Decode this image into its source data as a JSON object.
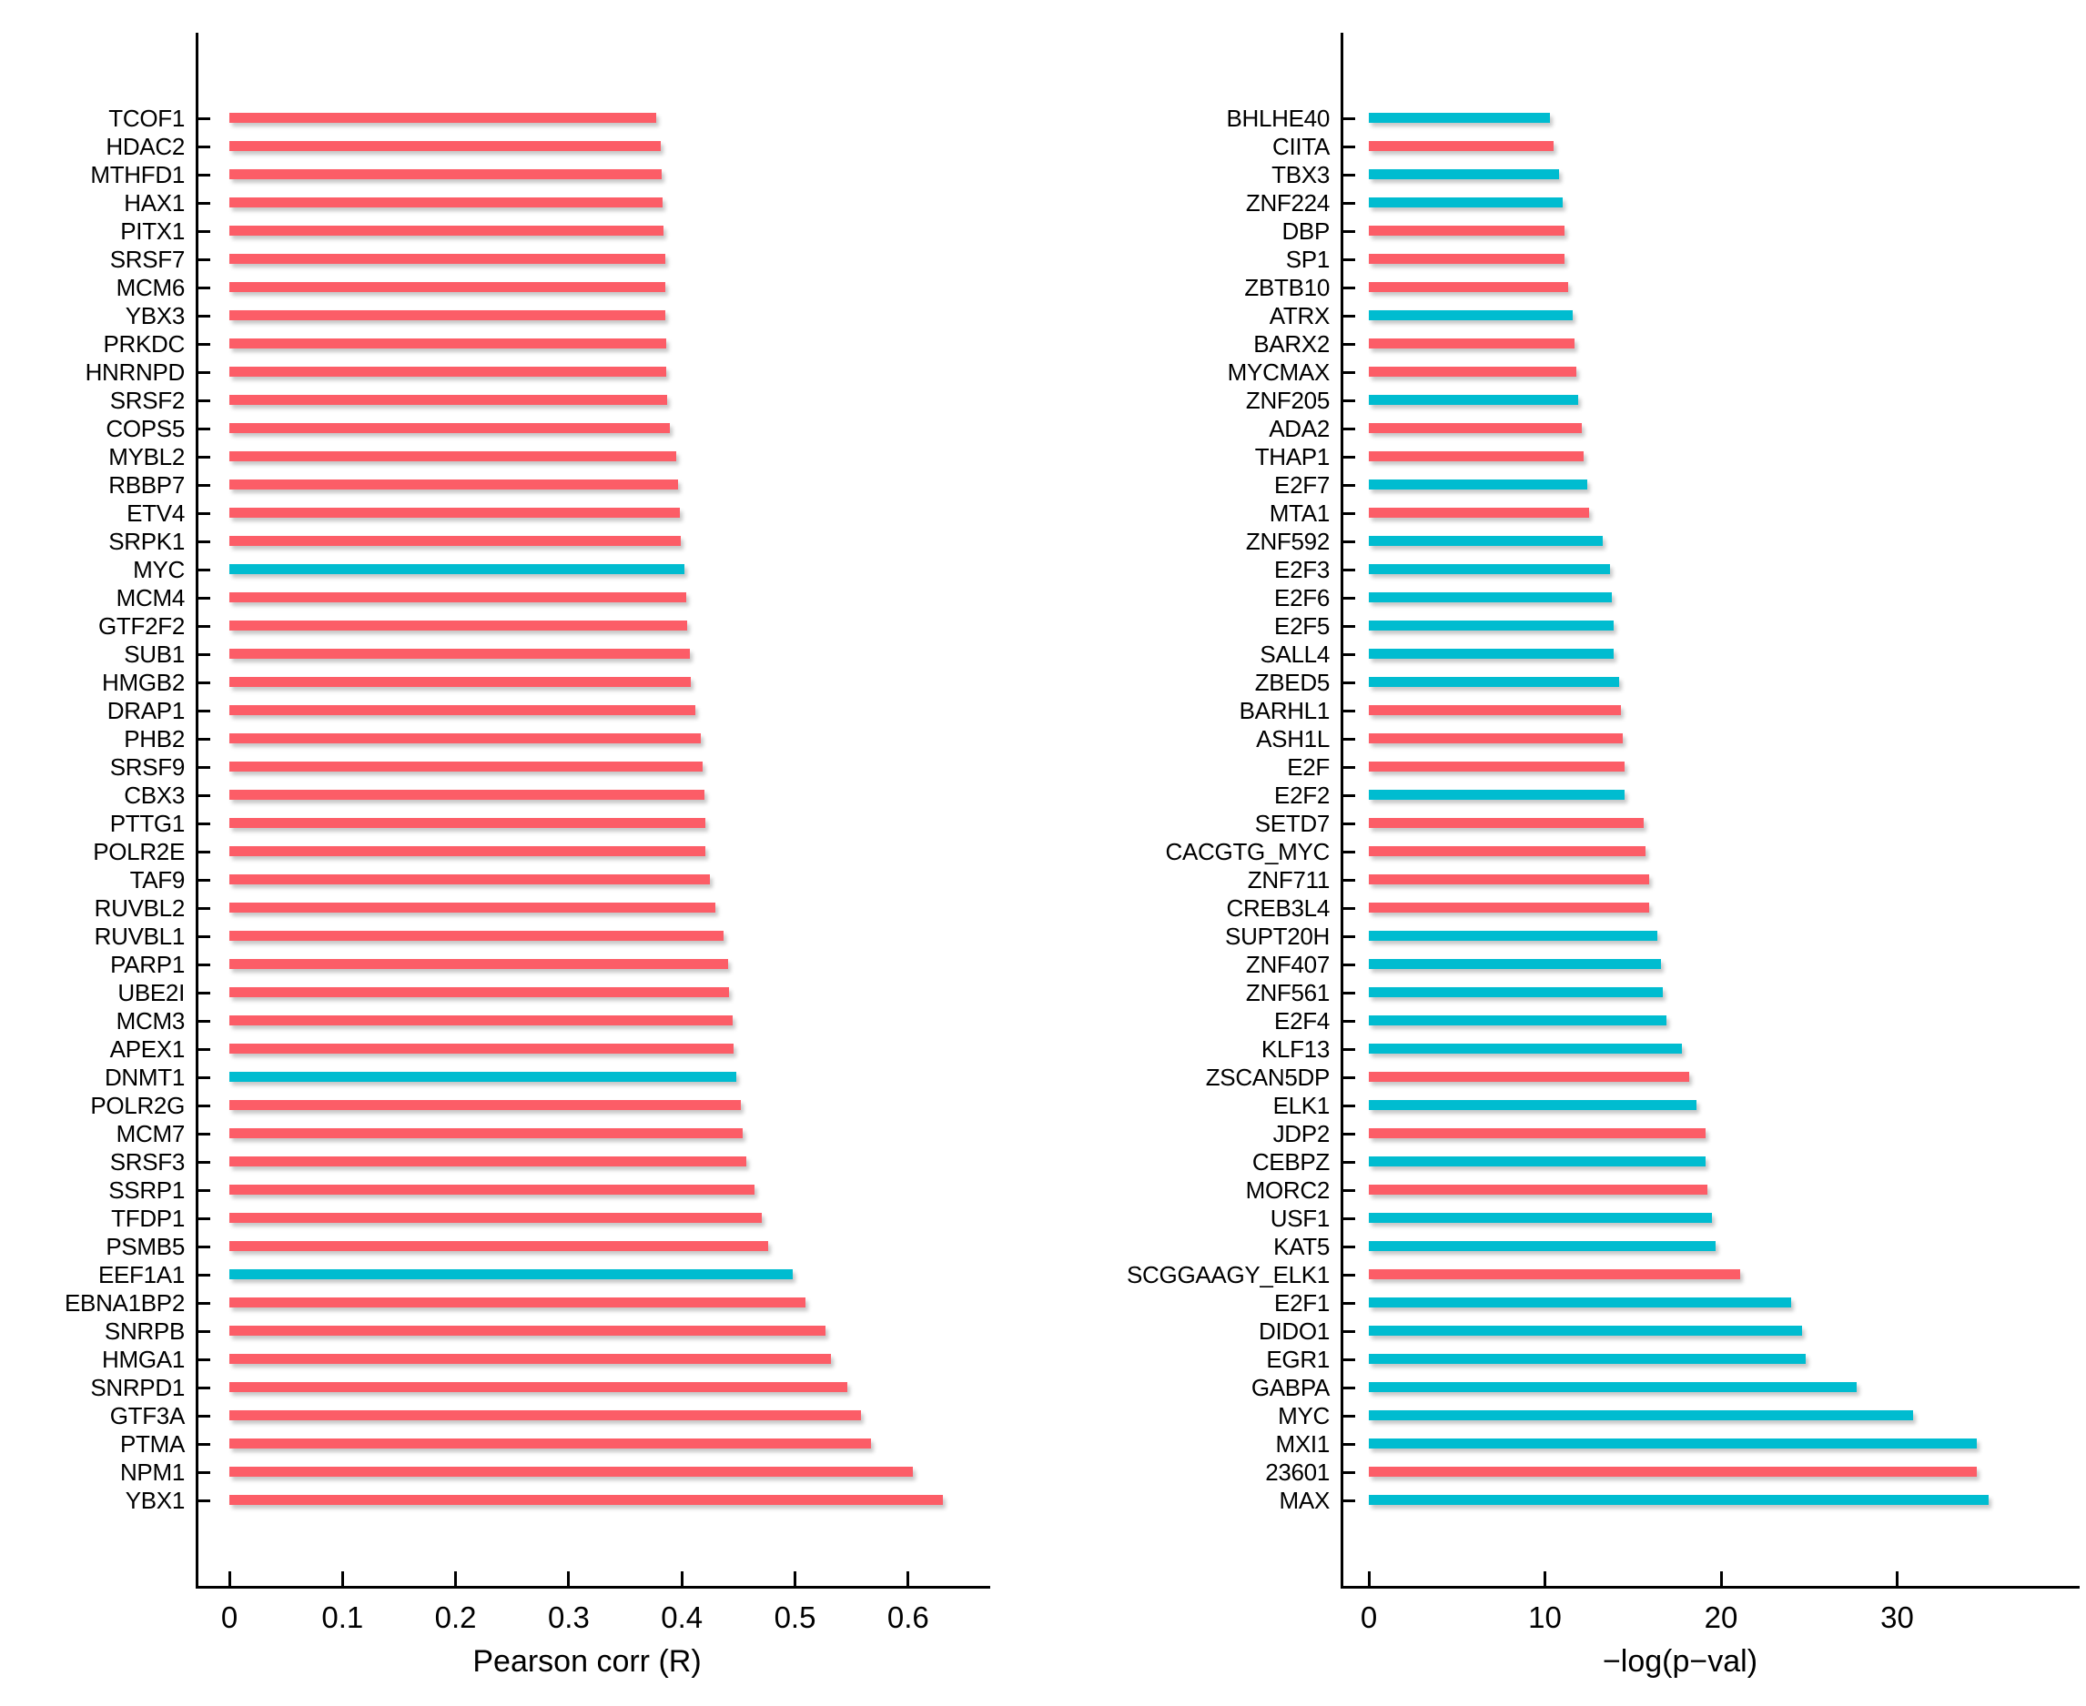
{
  "colors": {
    "red": "#FC5D67",
    "cyan": "#00BCD0",
    "axis": "#000000"
  },
  "chart_data": [
    {
      "type": "bar",
      "orientation": "horizontal",
      "title": "",
      "xlabel": "Pearson corr (R)",
      "ylabel": "",
      "xlim": [
        0,
        0.67
      ],
      "grid": false,
      "legend": false,
      "xticks": [
        0,
        0.1,
        0.2,
        0.3,
        0.4,
        0.5,
        0.6
      ],
      "xtick_labels": [
        "0",
        "0.1",
        "0.2",
        "0.3",
        "0.4",
        "0.5",
        "0.6"
      ],
      "categories": [
        "TCOF1",
        "HDAC2",
        "MTHFD1",
        "HAX1",
        "PITX1",
        "SRSF7",
        "MCM6",
        "YBX3",
        "PRKDC",
        "HNRNPD",
        "SRSF2",
        "COPS5",
        "MYBL2",
        "RBBP7",
        "ETV4",
        "SRPK1",
        "MYC",
        "MCM4",
        "GTF2F2",
        "SUB1",
        "HMGB2",
        "DRAP1",
        "PHB2",
        "SRSF9",
        "CBX3",
        "PTTG1",
        "POLR2E",
        "TAF9",
        "RUVBL2",
        "RUVBL1",
        "PARP1",
        "UBE2I",
        "MCM3",
        "APEX1",
        "DNMT1",
        "POLR2G",
        "MCM7",
        "SRSF3",
        "SSRP1",
        "TFDP1",
        "PSMB5",
        "EEF1A1",
        "EBNA1BP2",
        "SNRPB",
        "HMGA1",
        "SNRPD1",
        "GTF3A",
        "PTMA",
        "NPM1",
        "YBX1"
      ],
      "values": [
        0.377,
        0.381,
        0.382,
        0.383,
        0.384,
        0.385,
        0.385,
        0.385,
        0.386,
        0.386,
        0.387,
        0.389,
        0.395,
        0.397,
        0.398,
        0.399,
        0.402,
        0.404,
        0.405,
        0.407,
        0.408,
        0.412,
        0.417,
        0.418,
        0.42,
        0.421,
        0.421,
        0.425,
        0.43,
        0.437,
        0.441,
        0.442,
        0.445,
        0.446,
        0.448,
        0.452,
        0.454,
        0.457,
        0.464,
        0.471,
        0.476,
        0.498,
        0.509,
        0.527,
        0.532,
        0.546,
        0.558,
        0.567,
        0.604,
        0.631
      ],
      "bar_colors": [
        "red",
        "red",
        "red",
        "red",
        "red",
        "red",
        "red",
        "red",
        "red",
        "red",
        "red",
        "red",
        "red",
        "red",
        "red",
        "red",
        "cyan",
        "red",
        "red",
        "red",
        "red",
        "red",
        "red",
        "red",
        "red",
        "red",
        "red",
        "red",
        "red",
        "red",
        "red",
        "red",
        "red",
        "red",
        "cyan",
        "red",
        "red",
        "red",
        "red",
        "red",
        "red",
        "cyan",
        "red",
        "red",
        "red",
        "red",
        "red",
        "red",
        "red",
        "red"
      ]
    },
    {
      "type": "bar",
      "orientation": "horizontal",
      "title": "",
      "xlabel": "−log(p−val)",
      "ylabel": "",
      "xlim": [
        0,
        37
      ],
      "grid": false,
      "legend": false,
      "xticks": [
        0,
        10,
        20,
        30
      ],
      "xtick_labels": [
        "0",
        "10",
        "20",
        "30"
      ],
      "categories": [
        "BHLHE40",
        "CIITA",
        "TBX3",
        "ZNF224",
        "DBP",
        "SP1",
        "ZBTB10",
        "ATRX",
        "BARX2",
        "MYCMAX",
        "ZNF205",
        "ADA2",
        "THAP1",
        "E2F7",
        "MTA1",
        "ZNF592",
        "E2F3",
        "E2F6",
        "E2F5",
        "SALL4",
        "ZBED5",
        "BARHL1",
        "ASH1L",
        "E2F",
        "E2F2",
        "SETD7",
        "CACGTG_MYC",
        "ZNF711",
        "CREB3L4",
        "SUPT20H",
        "ZNF407",
        "ZNF561",
        "E2F4",
        "KLF13",
        "ZSCAN5DP",
        "ELK1",
        "JDP2",
        "CEBPZ",
        "MORC2",
        "USF1",
        "KAT5",
        "SCGGAAGY_ELK1",
        "E2F1",
        "DIDO1",
        "EGR1",
        "GABPA",
        "MYC",
        "MXI1",
        "23601",
        "MAX"
      ],
      "values": [
        10.3,
        10.5,
        10.8,
        11.0,
        11.1,
        11.1,
        11.3,
        11.6,
        11.7,
        11.8,
        11.9,
        12.1,
        12.2,
        12.4,
        12.5,
        13.3,
        13.7,
        13.8,
        13.9,
        13.9,
        14.2,
        14.3,
        14.4,
        14.5,
        14.5,
        15.6,
        15.7,
        15.9,
        15.9,
        16.4,
        16.6,
        16.7,
        16.9,
        17.8,
        18.2,
        18.6,
        19.1,
        19.1,
        19.2,
        19.5,
        19.7,
        21.1,
        24.0,
        24.6,
        24.8,
        27.7,
        30.9,
        34.5,
        34.5,
        35.2
      ],
      "bar_colors": [
        "cyan",
        "red",
        "cyan",
        "cyan",
        "red",
        "red",
        "red",
        "cyan",
        "red",
        "red",
        "cyan",
        "red",
        "red",
        "cyan",
        "red",
        "cyan",
        "cyan",
        "cyan",
        "cyan",
        "cyan",
        "cyan",
        "red",
        "red",
        "red",
        "cyan",
        "red",
        "red",
        "red",
        "red",
        "cyan",
        "cyan",
        "cyan",
        "cyan",
        "cyan",
        "red",
        "cyan",
        "red",
        "cyan",
        "red",
        "cyan",
        "cyan",
        "red",
        "cyan",
        "cyan",
        "cyan",
        "cyan",
        "cyan",
        "cyan",
        "red",
        "cyan"
      ]
    }
  ]
}
